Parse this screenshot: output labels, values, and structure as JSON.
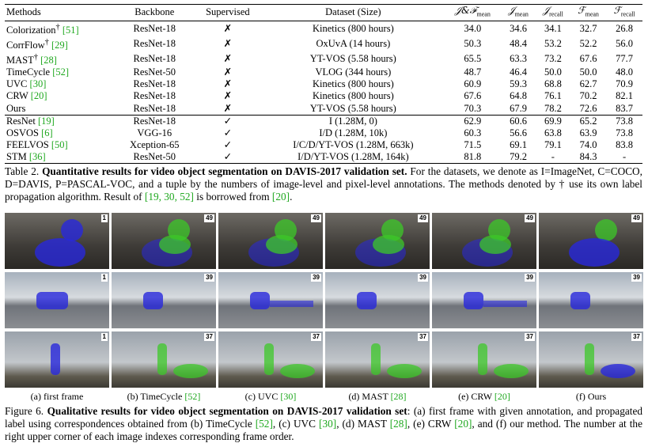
{
  "table": {
    "header": [
      {
        "text": "Methods"
      },
      {
        "text": "Backbone"
      },
      {
        "text": "Supervised"
      },
      {
        "text": "Dataset (Size)"
      },
      {
        "text": "𝒥&ℱ",
        "sub": "mean"
      },
      {
        "text": "𝒥",
        "sub": "mean"
      },
      {
        "text": "𝒥",
        "sub": "recall"
      },
      {
        "text": "ℱ",
        "sub": "mean"
      },
      {
        "text": "ℱ",
        "sub": "recall"
      }
    ],
    "groups": [
      [
        {
          "method": "Colorization",
          "sup": "†",
          "ref": "[51]",
          "backbone": "ResNet-18",
          "supervised": "✗",
          "dataset": "Kinetics (800 hours)",
          "values": [
            "34.0",
            "34.6",
            "34.1",
            "32.7",
            "26.8"
          ]
        },
        {
          "method": "CorrFlow",
          "sup": "†",
          "ref": "[29]",
          "backbone": "ResNet-18",
          "supervised": "✗",
          "dataset": "OxUvA (14 hours)",
          "values": [
            "50.3",
            "48.4",
            "53.2",
            "52.2",
            "56.0"
          ]
        },
        {
          "method": "MAST",
          "sup": "†",
          "ref": "[28]",
          "backbone": "ResNet-18",
          "supervised": "✗",
          "dataset": "YT-VOS (5.58 hours)",
          "values": [
            "65.5",
            "63.3",
            "73.2",
            "67.6",
            "77.7"
          ]
        },
        {
          "method": "TimeCycle",
          "ref": "[52]",
          "backbone": "ResNet-50",
          "supervised": "✗",
          "dataset": "VLOG (344 hours)",
          "values": [
            "48.7",
            "46.4",
            "50.0",
            "50.0",
            "48.0"
          ]
        },
        {
          "method": "UVC",
          "ref": "[30]",
          "backbone": "ResNet-18",
          "supervised": "✗",
          "dataset": "Kinetics (800 hours)",
          "values": [
            "60.9",
            "59.3",
            "68.8",
            "62.7",
            "70.9"
          ]
        },
        {
          "method": "CRW",
          "ref": "[20]",
          "backbone": "ResNet-18",
          "supervised": "✗",
          "dataset": "Kinetics (800 hours)",
          "values": [
            "67.6",
            "64.8",
            "76.1",
            "70.2",
            "82.1"
          ]
        },
        {
          "method": "Ours",
          "bold": true,
          "backbone": "ResNet-18",
          "supervised": "✗",
          "dataset": "YT-VOS (5.58 hours)",
          "values": [
            "70.3",
            "67.9",
            "78.2",
            "72.6",
            "83.7"
          ]
        }
      ],
      [
        {
          "method": "ResNet",
          "ref": "[19]",
          "backbone": "ResNet-18",
          "supervised": "✓",
          "dataset": "I (1.28M, 0)",
          "values": [
            "62.9",
            "60.6",
            "69.9",
            "65.2",
            "73.8"
          ]
        },
        {
          "method": "OSVOS",
          "ref": "[6]",
          "backbone": "VGG-16",
          "supervised": "✓",
          "dataset": "I/D (1.28M, 10k)",
          "values": [
            "60.3",
            "56.6",
            "63.8",
            "63.9",
            "73.8"
          ]
        },
        {
          "method": "FEELVOS",
          "ref": "[50]",
          "backbone": "Xception-65",
          "supervised": "✓",
          "dataset": "I/C/D/YT-VOS (1.28M, 663k)",
          "values": [
            "71.5",
            "69.1",
            "79.1",
            "74.0",
            "83.8"
          ]
        },
        {
          "method": "STM",
          "ref": "[36]",
          "backbone": "ResNet-50",
          "supervised": "✓",
          "dataset": "I/D/YT-VOS (1.28M, 164k)",
          "values": [
            "81.8",
            "79.2",
            "-",
            "84.3",
            "-"
          ]
        }
      ]
    ],
    "caption": [
      {
        "text": "Table 2. "
      },
      {
        "text": "Quantitative results for video object segmentation on DAVIS-2017 validation set.",
        "style": "b"
      },
      {
        "text": " For the datasets, we denote as I=ImageNet, C=COCO, D=DAVIS, P=PASCAL-VOC, and a tuple by the numbers of image-level and pixel-level annotations. The methods denoted by † use its own label propagation algorithm. Result of "
      },
      {
        "text": "[19, 30, 52]",
        "style": "ref"
      },
      {
        "text": " is borrowed from "
      },
      {
        "text": "[20]",
        "style": "ref"
      },
      {
        "text": "."
      }
    ]
  },
  "figure": {
    "frames": [
      [
        1,
        49,
        49,
        49,
        49,
        49
      ],
      [
        1,
        39,
        39,
        39,
        39,
        39
      ],
      [
        1,
        37,
        37,
        37,
        37,
        37
      ]
    ],
    "subcaptions": [
      {
        "text": "(a) first frame"
      },
      {
        "text": "(b) TimeCycle ",
        "ref": "[52]"
      },
      {
        "text": "(c) UVC ",
        "ref": "[30]"
      },
      {
        "text": "(d) MAST ",
        "ref": "[28]"
      },
      {
        "text": "(e) CRW ",
        "ref": "[20]"
      },
      {
        "text": "(f) Ours"
      }
    ],
    "caption": [
      {
        "text": "Figure 6. "
      },
      {
        "text": "Qualitative results for video object segmentation on DAVIS-2017 validation set",
        "style": "b"
      },
      {
        "text": ": (a) first frame with given annotation, and propagated label using correspondences obtained from (b) TimeCycle "
      },
      {
        "text": "[52]",
        "style": "ref"
      },
      {
        "text": ", (c) UVC "
      },
      {
        "text": "[30]",
        "style": "ref"
      },
      {
        "text": ", (d) MAST "
      },
      {
        "text": "[28]",
        "style": "ref"
      },
      {
        "text": ", (e) CRW "
      },
      {
        "text": "[20]",
        "style": "ref"
      },
      {
        "text": ", and (f) our method. The number at the right upper corner of each image indexes corresponding frame order."
      }
    ]
  }
}
